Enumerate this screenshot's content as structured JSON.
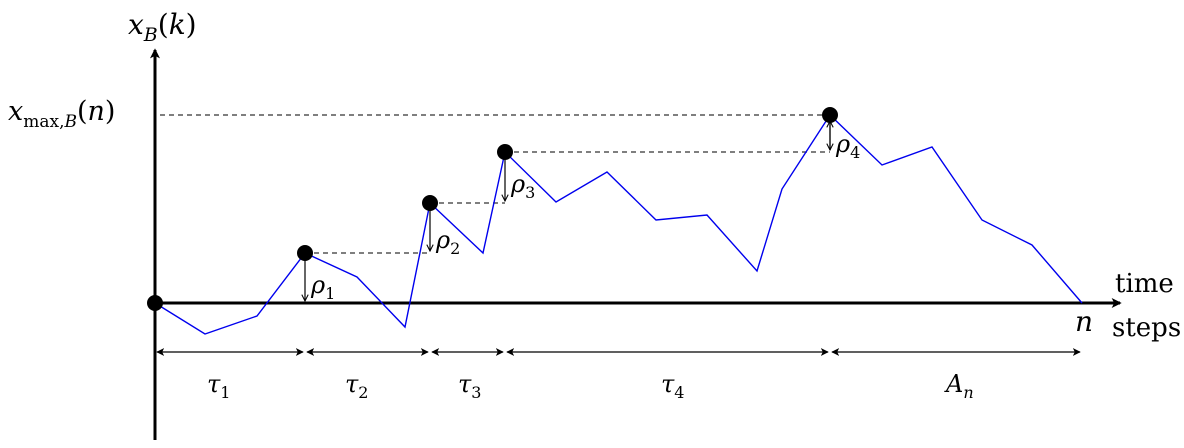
{
  "y_axis_label": "x_B(k)",
  "x_axis_label_top": "time",
  "x_axis_label_bottom": "steps",
  "x_end_label": "n",
  "max_label": "x_max,B(n)",
  "drops": [
    "ρ1",
    "ρ2",
    "ρ3",
    "ρ4"
  ],
  "intervals": [
    "τ1",
    "τ2",
    "τ3",
    "τ4",
    "A_n"
  ],
  "colors": {
    "walk": "#0000ee",
    "axes": "#000000",
    "dashed": "#333333"
  }
}
